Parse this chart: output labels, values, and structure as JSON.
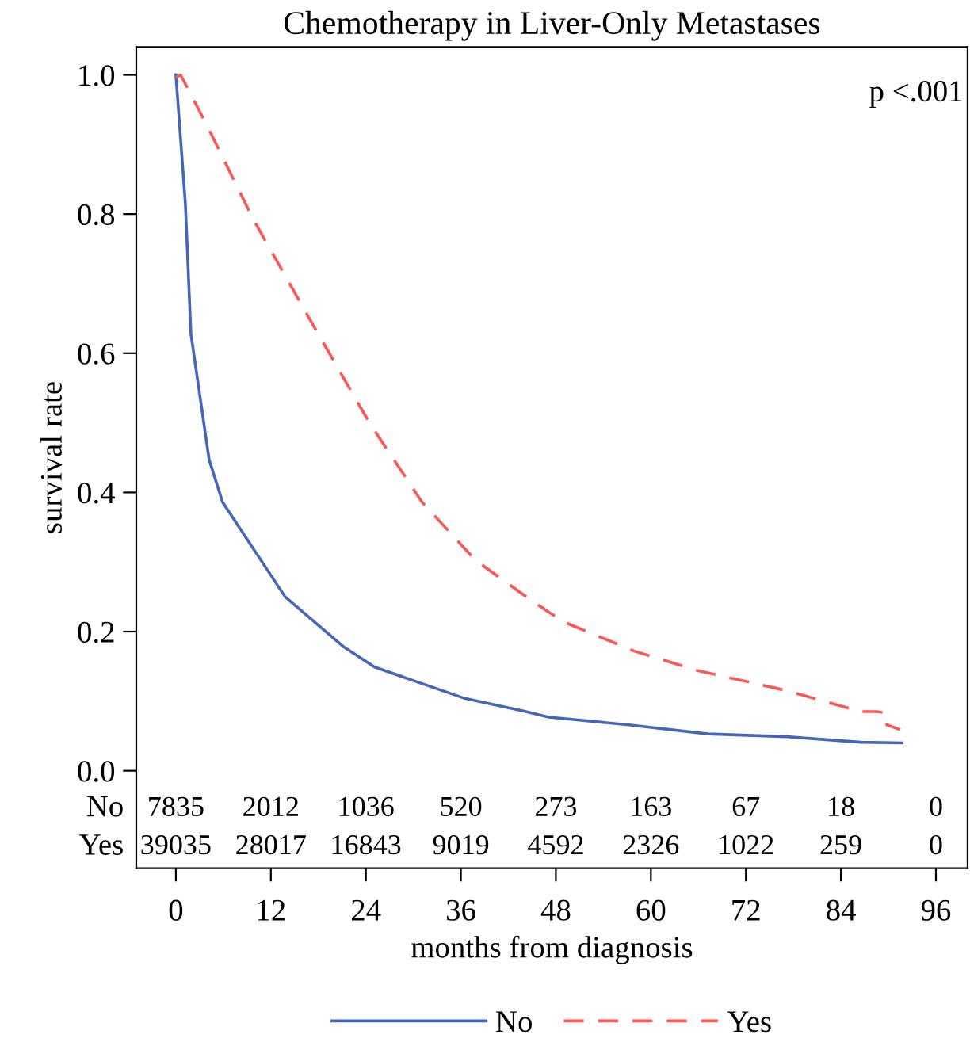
{
  "chart_data": {
    "type": "line",
    "title": "Chemotherapy in Liver-Only Metastases",
    "xlabel": "months from diagnosis",
    "ylabel": "survival rate",
    "xlim": [
      -5,
      100
    ],
    "ylim": [
      -0.14,
      1.04
    ],
    "xticks": [
      0,
      12,
      24,
      36,
      48,
      60,
      72,
      84,
      96
    ],
    "yticks": [
      {
        "value": 0,
        "label": "0.0"
      },
      0.2,
      0.4,
      0.6,
      0.8,
      {
        "value": 1,
        "label": "1.0"
      }
    ],
    "grid": false,
    "legend": "bottom",
    "marker": "none",
    "series": [
      {
        "name": "No",
        "color": "#4466bb",
        "line_style": "solid",
        "x": [
          0,
          1.2,
          1.9,
          4.2,
          5.9,
          13.8,
          21.2,
          25.1,
          36.5,
          43.9,
          47.1,
          57.2,
          67.2,
          77.2,
          86.5,
          91.7
        ],
        "values": [
          1.0,
          0.815,
          0.628,
          0.447,
          0.386,
          0.25,
          0.178,
          0.149,
          0.104,
          0.086,
          0.077,
          0.066,
          0.053,
          0.049,
          0.041,
          0.04
        ]
      },
      {
        "name": "Yes",
        "color": "#ff5555",
        "line_style": "dashed",
        "x": [
          0,
          0.6,
          3.9,
          9.8,
          16.5,
          24.5,
          31.1,
          37.8,
          43.9,
          47.1,
          49.2,
          57.9,
          65.9,
          77.2,
          86.5,
          88.5,
          89.8,
          89.8,
          91.5
        ],
        "values": [
          0.996,
          1.0,
          0.928,
          0.792,
          0.657,
          0.499,
          0.386,
          0.303,
          0.253,
          0.228,
          0.213,
          0.172,
          0.144,
          0.115,
          0.085,
          0.085,
          0.083,
          0.066,
          0.059
        ]
      }
    ],
    "annotations": [
      "p <.001",
      "No",
      "7835",
      "2012",
      "1036",
      "520",
      "273",
      "163",
      "67",
      "18",
      "0",
      "Yes",
      "39035",
      "28017",
      "16843",
      "9019",
      "4592",
      "2326",
      "1022",
      "259",
      "0"
    ]
  }
}
